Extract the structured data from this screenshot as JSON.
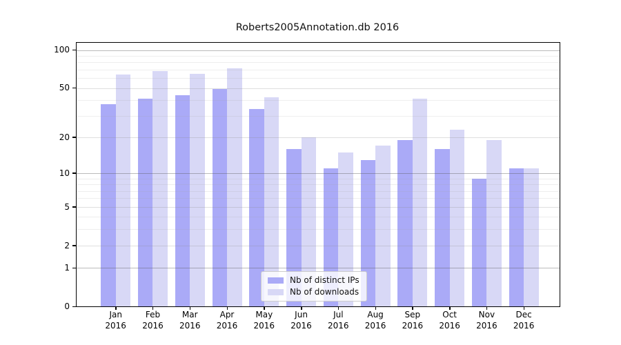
{
  "chart_data": {
    "type": "bar",
    "title": "Roberts2005Annotation.db 2016",
    "categories": [
      "Jan",
      "Feb",
      "Mar",
      "Apr",
      "May",
      "Jun",
      "Jul",
      "Aug",
      "Sep",
      "Oct",
      "Nov",
      "Dec"
    ],
    "year_label": "2016",
    "series": [
      {
        "name": "Nb of distinct IPs",
        "color": "#aaaaf7",
        "values": [
          37,
          41,
          44,
          49,
          34,
          16,
          11,
          13,
          19,
          16,
          9,
          11
        ]
      },
      {
        "name": "Nb of downloads",
        "color": "#d8d8f6",
        "values": [
          64,
          68,
          65,
          72,
          42,
          20,
          15,
          17,
          41,
          23,
          19,
          11
        ]
      }
    ],
    "xlabel": "",
    "ylabel": "",
    "yscale": "log1p",
    "ylim": [
      0,
      114
    ],
    "yticks": [
      0,
      1,
      2,
      5,
      10,
      20,
      50,
      100
    ],
    "decade_gridlines": [
      1,
      10,
      100
    ],
    "mid_gridlines": [
      2,
      5,
      20,
      50
    ],
    "minor_gridlines": [
      3,
      4,
      6,
      7,
      8,
      9,
      30,
      40,
      60,
      70,
      80,
      90
    ],
    "grid": "on",
    "legend_position": "lower center"
  },
  "colors": {
    "bar_dark": "#aaaaf7",
    "bar_light": "#d8d8f6",
    "spine": "#000000",
    "legend_border": "#cccccc"
  }
}
